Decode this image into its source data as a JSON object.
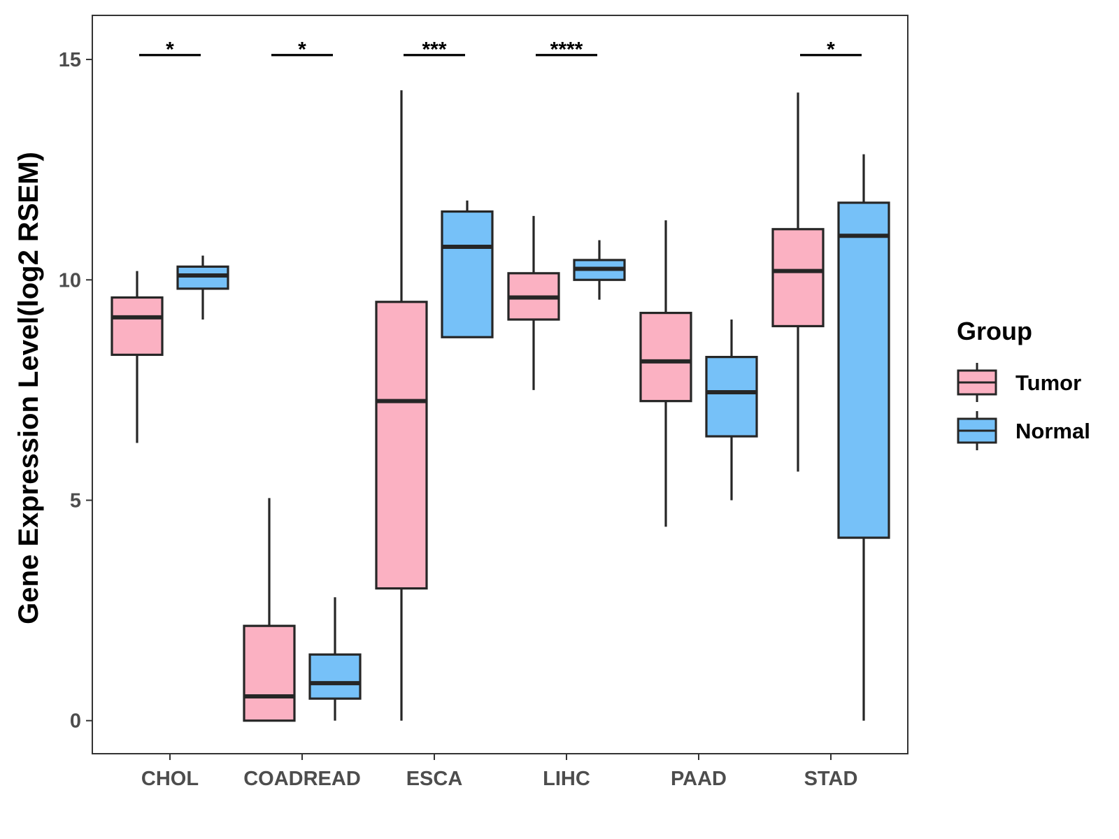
{
  "chart_data": {
    "type": "boxplot",
    "title": "",
    "xlabel": "",
    "ylabel": "Gene Expression Level(log2 RSEM)",
    "ylim": [
      -0.75,
      16.0
    ],
    "yticks": [
      0,
      5,
      10,
      15
    ],
    "grid": false,
    "categories": [
      "CHOL",
      "COADREAD",
      "ESCA",
      "LIHC",
      "PAAD",
      "STAD"
    ],
    "legend": {
      "title": "Group",
      "position": "right",
      "entries": [
        {
          "name": "Tumor",
          "color": "#FBB1C2"
        },
        {
          "name": "Normal",
          "color": "#76C1F8"
        }
      ]
    },
    "series": [
      {
        "name": "Tumor",
        "color": "#FBB1C2",
        "boxes": [
          {
            "min": 6.3,
            "q1": 8.3,
            "median": 9.15,
            "q3": 9.6,
            "max": 10.2
          },
          {
            "min": 0.0,
            "q1": 0.0,
            "median": 0.55,
            "q3": 2.15,
            "max": 5.05
          },
          {
            "min": 0.0,
            "q1": 3.0,
            "median": 7.25,
            "q3": 9.5,
            "max": 14.3
          },
          {
            "min": 7.5,
            "q1": 9.1,
            "median": 9.6,
            "q3": 10.15,
            "max": 11.45
          },
          {
            "min": 4.4,
            "q1": 7.25,
            "median": 8.15,
            "q3": 9.25,
            "max": 11.35
          },
          {
            "min": 5.65,
            "q1": 8.95,
            "median": 10.2,
            "q3": 11.15,
            "max": 14.25
          }
        ]
      },
      {
        "name": "Normal",
        "color": "#76C1F8",
        "boxes": [
          {
            "min": 9.1,
            "q1": 9.8,
            "median": 10.1,
            "q3": 10.3,
            "max": 10.55
          },
          {
            "min": 0.0,
            "q1": 0.5,
            "median": 0.85,
            "q3": 1.5,
            "max": 2.8
          },
          {
            "min": 8.7,
            "q1": 8.7,
            "median": 10.75,
            "q3": 11.55,
            "max": 11.8
          },
          {
            "min": 9.55,
            "q1": 10.0,
            "median": 10.25,
            "q3": 10.45,
            "max": 10.9
          },
          {
            "min": 5.0,
            "q1": 6.45,
            "median": 7.45,
            "q3": 8.25,
            "max": 9.1
          },
          {
            "min": 0.0,
            "q1": 4.15,
            "median": 11.0,
            "q3": 11.75,
            "max": 12.85
          }
        ]
      }
    ],
    "significance": [
      {
        "category": "CHOL",
        "label": "*",
        "y": 15.1
      },
      {
        "category": "COADREAD",
        "label": "*",
        "y": 15.1
      },
      {
        "category": "ESCA",
        "label": "***",
        "y": 15.1
      },
      {
        "category": "LIHC",
        "label": "****",
        "y": 15.1
      },
      {
        "category": "PAAD",
        "label": "",
        "y": 15.1
      },
      {
        "category": "STAD",
        "label": "*",
        "y": 15.1
      }
    ],
    "colors": {
      "outline": "#262626",
      "panel_border": "#333333",
      "tick": "#333333"
    }
  }
}
